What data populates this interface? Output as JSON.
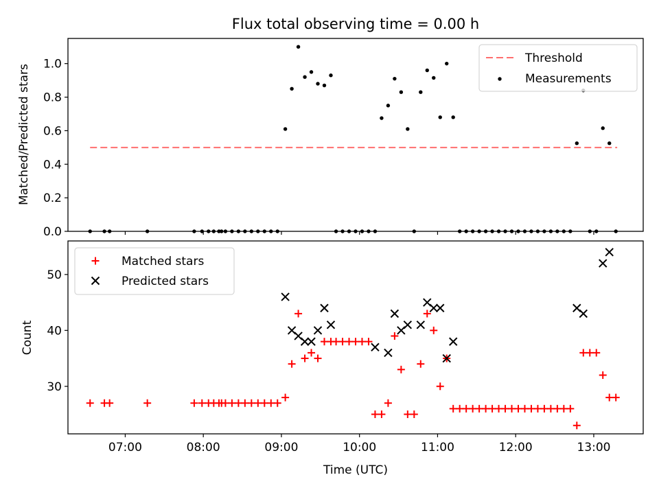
{
  "title": "Flux total observing time = 0.00 h",
  "xlabel": "Time (UTC)",
  "colors": {
    "threshold": "#ff6e6e",
    "measurements": "#000000",
    "matched": "#ff0000",
    "predicted": "#000000"
  },
  "chart_data": [
    {
      "type": "scatter",
      "panel": "top",
      "ylabel": "Matched/Predicted stars",
      "xlim": [
        "06:16",
        "13:38"
      ],
      "ylim": [
        0,
        1.15
      ],
      "yticks": [
        "0.0",
        "0.2",
        "0.4",
        "0.6",
        "0.8",
        "1.0"
      ],
      "legend_position": "upper right",
      "legend": {
        "threshold": "Threshold",
        "measurements": "Measurements"
      },
      "threshold": {
        "value": 0.5,
        "x_start": "06:33",
        "x_end": "13:18"
      },
      "series": [
        {
          "name": "Measurements",
          "x": [
            "06:33",
            "06:44",
            "06:48",
            "07:17",
            "07:53",
            "07:59",
            "08:04",
            "08:08",
            "08:12",
            "08:14",
            "08:17",
            "08:22",
            "08:27",
            "08:32",
            "08:37",
            "08:42",
            "08:47",
            "08:52",
            "08:57",
            "09:03",
            "09:08",
            "09:13",
            "09:18",
            "09:23",
            "09:28",
            "09:33",
            "09:38",
            "09:42",
            "09:47",
            "09:52",
            "09:57",
            "10:02",
            "10:07",
            "10:12",
            "10:17",
            "10:22",
            "10:27",
            "10:32",
            "10:37",
            "10:42",
            "10:47",
            "10:52",
            "10:57",
            "11:02",
            "11:07",
            "11:12",
            "11:17",
            "11:22",
            "11:27",
            "11:32",
            "11:37",
            "11:42",
            "11:47",
            "11:52",
            "11:57",
            "12:02",
            "12:07",
            "12:12",
            "12:17",
            "12:22",
            "12:27",
            "12:32",
            "12:37",
            "12:42",
            "12:47",
            "12:52",
            "12:57",
            "13:02",
            "13:07",
            "13:12",
            "13:17"
          ],
          "y": [
            0,
            0,
            0,
            0,
            0,
            0,
            0,
            0,
            0,
            0,
            0,
            0,
            0,
            0,
            0,
            0,
            0,
            0,
            0,
            0.61,
            0.85,
            1.1,
            0.92,
            0.95,
            0.88,
            0.87,
            0.93,
            0,
            0,
            0,
            0,
            0,
            0,
            0,
            0.675,
            0.75,
            0.91,
            0.83,
            0.61,
            0,
            0.83,
            0.96,
            0.915,
            0.68,
            1.0,
            0.68,
            0,
            0,
            0,
            0,
            0,
            0,
            0,
            0,
            0,
            0,
            0,
            0,
            0,
            0,
            0,
            0,
            0,
            0,
            0.525,
            0.84,
            0,
            0,
            0.615,
            0.525,
            0
          ]
        }
      ]
    },
    {
      "type": "scatter",
      "panel": "bottom",
      "ylabel": "Count",
      "xlim": [
        "06:16",
        "13:38"
      ],
      "ylim": [
        21.5,
        56
      ],
      "yticks": [
        "30",
        "40",
        "50"
      ],
      "xticks": [
        "07:00",
        "08:00",
        "09:00",
        "10:00",
        "11:00",
        "12:00",
        "13:00"
      ],
      "legend_position": "upper left",
      "legend": {
        "matched": "Matched stars",
        "predicted": "Predicted stars"
      },
      "series": [
        {
          "name": "Matched stars",
          "x": [
            "06:33",
            "06:44",
            "06:48",
            "07:17",
            "07:53",
            "07:59",
            "08:04",
            "08:08",
            "08:12",
            "08:14",
            "08:17",
            "08:22",
            "08:27",
            "08:32",
            "08:37",
            "08:42",
            "08:47",
            "08:52",
            "08:57",
            "09:03",
            "09:08",
            "09:13",
            "09:18",
            "09:23",
            "09:28",
            "09:33",
            "09:38",
            "09:42",
            "09:47",
            "09:52",
            "09:57",
            "10:02",
            "10:07",
            "10:12",
            "10:17",
            "10:22",
            "10:27",
            "10:32",
            "10:37",
            "10:42",
            "10:47",
            "10:52",
            "10:57",
            "11:02",
            "11:07",
            "11:12",
            "11:17",
            "11:22",
            "11:27",
            "11:32",
            "11:37",
            "11:42",
            "11:47",
            "11:52",
            "11:57",
            "12:02",
            "12:07",
            "12:12",
            "12:17",
            "12:22",
            "12:27",
            "12:32",
            "12:37",
            "12:42",
            "12:47",
            "12:52",
            "12:57",
            "13:02",
            "13:07",
            "13:12",
            "13:17"
          ],
          "y": [
            27,
            27,
            27,
            27,
            27,
            27,
            27,
            27,
            27,
            27,
            27,
            27,
            27,
            27,
            27,
            27,
            27,
            27,
            27,
            28,
            34,
            43,
            35,
            36,
            35,
            38,
            38,
            38,
            38,
            38,
            38,
            38,
            38,
            25,
            25,
            27,
            39,
            33,
            25,
            25,
            34,
            43,
            40,
            30,
            35,
            26,
            26,
            26,
            26,
            26,
            26,
            26,
            26,
            26,
            26,
            26,
            26,
            26,
            26,
            26,
            26,
            26,
            26,
            26,
            23,
            36,
            36,
            36,
            32,
            28,
            28
          ]
        },
        {
          "name": "Predicted stars",
          "x": [
            "09:03",
            "09:08",
            "09:13",
            "09:18",
            "09:23",
            "09:28",
            "09:33",
            "09:38",
            "10:12",
            "10:22",
            "10:27",
            "10:32",
            "10:37",
            "10:47",
            "10:52",
            "10:57",
            "11:02",
            "11:07",
            "11:12",
            "12:47",
            "12:52",
            "13:07",
            "13:12"
          ],
          "y": [
            46,
            40,
            39,
            38,
            38,
            40,
            44,
            41,
            37,
            36,
            43,
            40,
            41,
            41,
            45,
            44,
            44,
            35,
            38,
            44,
            43,
            52,
            54
          ]
        }
      ]
    }
  ]
}
